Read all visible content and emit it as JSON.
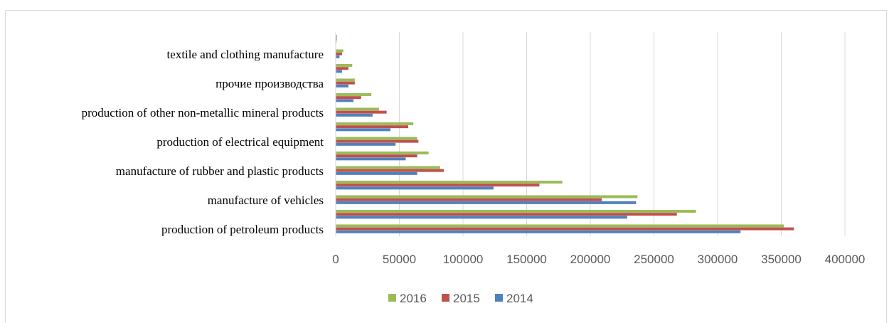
{
  "chart_data": {
    "type": "bar",
    "orientation": "horizontal",
    "title": "",
    "xlabel": "",
    "ylabel": "",
    "xlim": [
      0,
      400000
    ],
    "x_ticks": [
      0,
      50000,
      100000,
      150000,
      200000,
      250000,
      300000,
      350000,
      400000
    ],
    "x_tick_labels": [
      "0",
      "50000",
      "100000",
      "150000",
      "200000",
      "250000",
      "300000",
      "350000",
      "400000"
    ],
    "grid": "vertical",
    "legend_position": "bottom",
    "categories": [
      "production of petroleum products",
      "",
      "manufacture of vehicles",
      "",
      "manufacture of rubber and plastic products",
      "",
      "production of electrical equipment",
      "",
      "production of other non-metallic mineral products",
      "",
      "прочие производства",
      "",
      "textile and clothing manufacture",
      ""
    ],
    "series": [
      {
        "name": "2014",
        "color": "#4f81bd",
        "values": [
          318000,
          229000,
          236000,
          124000,
          64000,
          55000,
          47000,
          43000,
          29000,
          14000,
          10000,
          5000,
          3000,
          500
        ]
      },
      {
        "name": "2015",
        "color": "#c0504d",
        "values": [
          360000,
          268000,
          209000,
          160000,
          85000,
          64000,
          65000,
          57000,
          40000,
          20000,
          15000,
          10000,
          5000,
          800
        ]
      },
      {
        "name": "2016",
        "color": "#9bbb59",
        "values": [
          352000,
          283000,
          237000,
          178000,
          82000,
          73000,
          64000,
          61000,
          34000,
          28000,
          15000,
          13000,
          6000,
          1000
        ]
      }
    ],
    "legend_order": [
      "2016",
      "2015",
      "2014"
    ]
  }
}
